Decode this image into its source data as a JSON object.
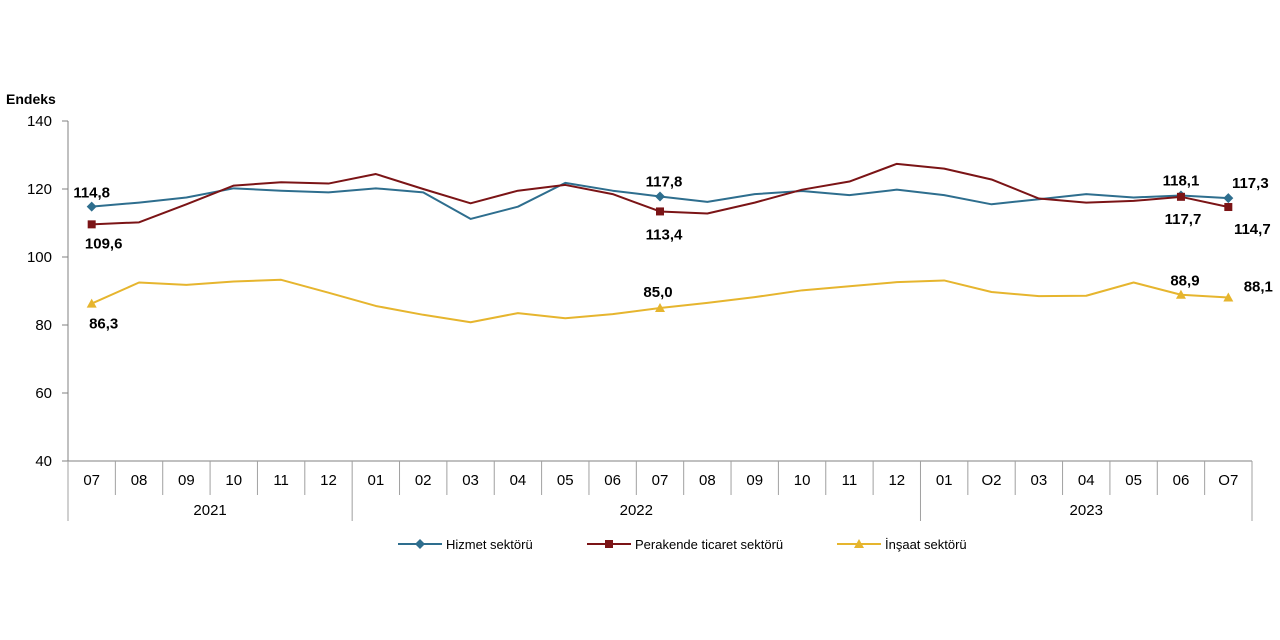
{
  "chart_data": {
    "type": "line",
    "ylabel": "Endeks",
    "ylim": [
      40,
      140
    ],
    "yticks": [
      40,
      60,
      80,
      100,
      120,
      140
    ],
    "grid": false,
    "legend_position": "bottom",
    "categories": [
      "07",
      "08",
      "09",
      "10",
      "11",
      "12",
      "01",
      "02",
      "03",
      "04",
      "05",
      "06",
      "07",
      "08",
      "09",
      "10",
      "11",
      "12",
      "01",
      "O2",
      "03",
      "04",
      "05",
      "06",
      "O7"
    ],
    "year_groups": [
      {
        "label": "2021",
        "count": 6
      },
      {
        "label": "2022",
        "count": 12
      },
      {
        "label": "2023",
        "count": 7
      }
    ],
    "series": [
      {
        "name": "Hizmet sektörü",
        "color": "#2e6e8e",
        "marker": "diamond",
        "values": [
          114.8,
          116.0,
          117.5,
          120.2,
          119.5,
          119.0,
          120.2,
          119.0,
          111.2,
          114.8,
          121.8,
          119.5,
          117.8,
          116.2,
          118.5,
          119.4,
          118.2,
          119.8,
          118.2,
          115.5,
          117.0,
          118.5,
          117.5,
          118.1,
          117.3
        ],
        "labels": [
          {
            "index": 0,
            "text": "114,8"
          },
          {
            "index": 12,
            "text": "117,8"
          },
          {
            "index": 23,
            "text": "118,1"
          },
          {
            "index": 24,
            "text": "117,3"
          }
        ]
      },
      {
        "name": "Perakende ticaret sektörü",
        "color": "#7b1416",
        "marker": "square",
        "values": [
          109.6,
          110.2,
          115.5,
          121.0,
          122.0,
          121.6,
          124.4,
          120.0,
          115.8,
          119.5,
          121.2,
          118.5,
          113.4,
          112.8,
          116.0,
          119.8,
          122.2,
          127.4,
          126.0,
          122.8,
          117.2,
          116.0,
          116.5,
          117.7,
          114.7
        ],
        "labels": [
          {
            "index": 0,
            "text": "109,6"
          },
          {
            "index": 12,
            "text": "113,4"
          },
          {
            "index": 23,
            "text": "117,7"
          },
          {
            "index": 24,
            "text": "114,7"
          }
        ]
      },
      {
        "name": "İnşaat sektörü",
        "color": "#e6b52e",
        "marker": "triangle",
        "values": [
          86.3,
          92.5,
          91.8,
          92.8,
          93.3,
          89.5,
          85.6,
          83.0,
          80.8,
          83.5,
          82.0,
          83.2,
          85.0,
          86.5,
          88.2,
          90.2,
          91.4,
          92.6,
          93.1,
          89.7,
          88.5,
          88.6,
          92.5,
          88.9,
          88.1
        ],
        "labels": [
          {
            "index": 0,
            "text": "86,3"
          },
          {
            "index": 12,
            "text": "85,0"
          },
          {
            "index": 23,
            "text": "88,9"
          },
          {
            "index": 24,
            "text": "88,1"
          }
        ]
      }
    ]
  }
}
